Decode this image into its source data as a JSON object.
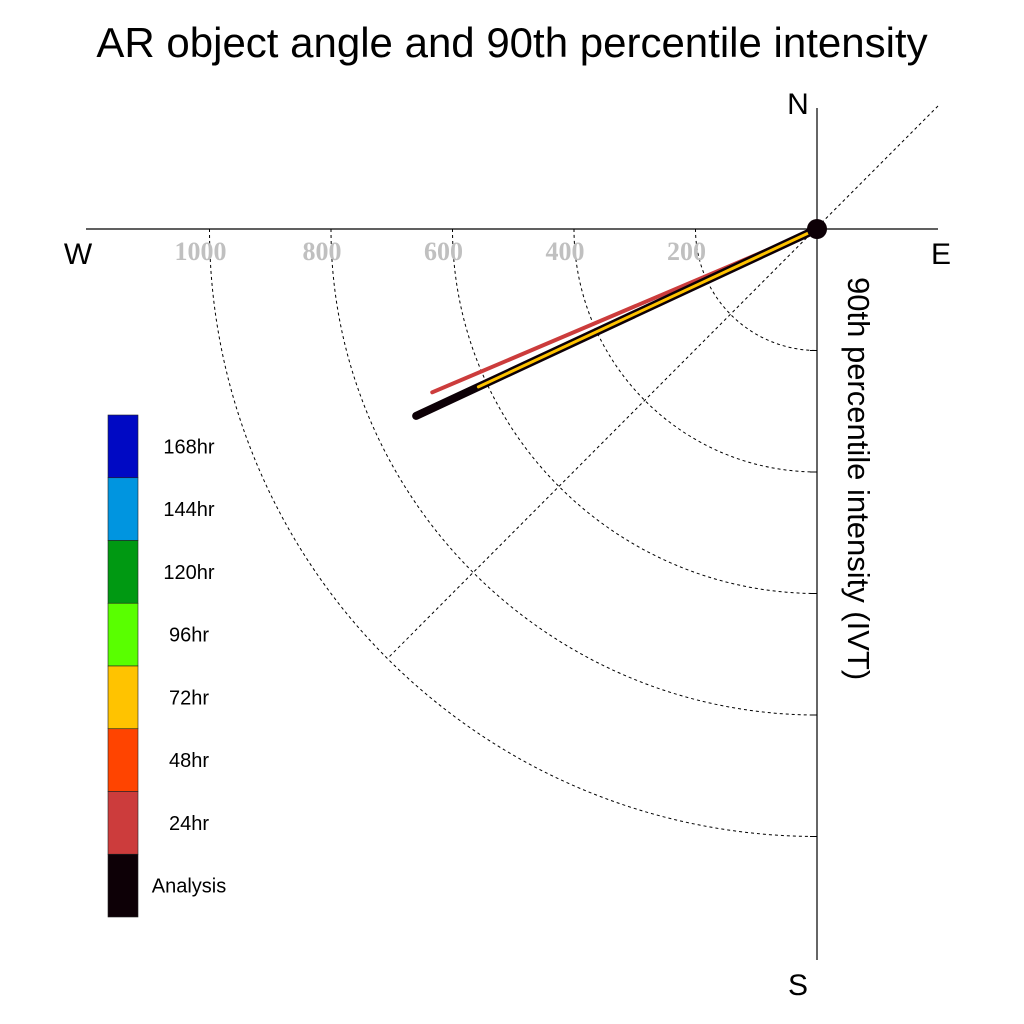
{
  "chart_data": {
    "type": "polar-vector",
    "title": "AR object angle and 90th percentile intensity",
    "ylabel": "90th percentile intensity (IVT)",
    "compass": {
      "north": "N",
      "south": "S",
      "east": "E",
      "west": "W"
    },
    "radial_ticks": [
      200,
      400,
      600,
      800,
      1000
    ],
    "radial_tick_labels": [
      "200",
      "400",
      "600",
      "800",
      "1000"
    ],
    "r_max": 1000,
    "grid": true,
    "legend": {
      "placement": "left",
      "entries": [
        {
          "label": "168hr",
          "color": "#0009c4"
        },
        {
          "label": "144hr",
          "color": "#0095e0"
        },
        {
          "label": "120hr",
          "color": "#009912"
        },
        {
          "label": "96hr",
          "color": "#59ff00"
        },
        {
          "label": "72hr",
          "color": "#ffc300"
        },
        {
          "label": "48hr",
          "color": "#ff4400"
        },
        {
          "label": "24hr",
          "color": "#cc3c3c"
        },
        {
          "label": "Analysis",
          "color": "#0d0006"
        }
      ]
    },
    "series": [
      {
        "name": "48hr",
        "angle_deg": 245,
        "intensity": 625,
        "color": "#ff4400",
        "width": 4
      },
      {
        "name": "24hr",
        "angle_deg": 247,
        "intensity": 688,
        "color": "#cc3c3c",
        "width": 4
      },
      {
        "name": "Analysis",
        "angle_deg": 245,
        "intensity": 728,
        "color": "#0d0006",
        "width": 8
      },
      {
        "name": "72hr",
        "angle_deg": 245,
        "intensity": 615,
        "color": "#ffc300",
        "width": 3
      }
    ]
  }
}
